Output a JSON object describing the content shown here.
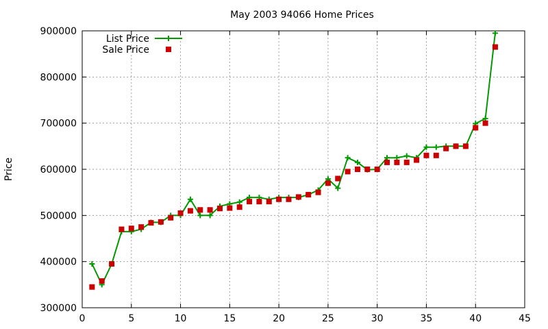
{
  "chart_data": {
    "type": "line",
    "title": "May 2003 94066 Home Prices",
    "xlabel": "",
    "ylabel": "Price",
    "xlim": [
      0,
      45
    ],
    "ylim": [
      300000,
      900000
    ],
    "xticks": [
      0,
      5,
      10,
      15,
      20,
      25,
      30,
      35,
      40,
      45
    ],
    "yticks": [
      300000,
      400000,
      500000,
      600000,
      700000,
      800000,
      900000
    ],
    "grid": true,
    "legend_position": "top-left",
    "series": [
      {
        "name": "List Price",
        "style": "line-with-plus-markers",
        "color": "#009900",
        "points": [
          [
            1,
            395000
          ],
          [
            2,
            350000
          ],
          [
            3,
            395000
          ],
          [
            4,
            465000
          ],
          [
            5,
            465000
          ],
          [
            6,
            470000
          ],
          [
            7,
            485000
          ],
          [
            8,
            485000
          ],
          [
            9,
            500000
          ],
          [
            10,
            500000
          ],
          [
            11,
            535000
          ],
          [
            12,
            500000
          ],
          [
            13,
            500000
          ],
          [
            14,
            520000
          ],
          [
            15,
            525000
          ],
          [
            16,
            529000
          ],
          [
            17,
            539000
          ],
          [
            18,
            539000
          ],
          [
            19,
            535000
          ],
          [
            20,
            539000
          ],
          [
            21,
            539000
          ],
          [
            22,
            539000
          ],
          [
            23,
            545000
          ],
          [
            24,
            555000
          ],
          [
            25,
            579000
          ],
          [
            26,
            559000
          ],
          [
            27,
            625000
          ],
          [
            28,
            615000
          ],
          [
            29,
            599000
          ],
          [
            30,
            600000
          ],
          [
            31,
            625000
          ],
          [
            32,
            625000
          ],
          [
            33,
            629000
          ],
          [
            34,
            625000
          ],
          [
            35,
            648000
          ],
          [
            36,
            648000
          ],
          [
            37,
            650000
          ],
          [
            38,
            650000
          ],
          [
            39,
            650000
          ],
          [
            40,
            699000
          ],
          [
            41,
            710000
          ],
          [
            42,
            895000
          ]
        ]
      },
      {
        "name": "Sale Price",
        "style": "square-markers",
        "color": "#cc0000",
        "points": [
          [
            1,
            345000
          ],
          [
            2,
            358000
          ],
          [
            3,
            395000
          ],
          [
            4,
            470000
          ],
          [
            5,
            472000
          ],
          [
            6,
            475000
          ],
          [
            7,
            484000
          ],
          [
            8,
            486000
          ],
          [
            9,
            495000
          ],
          [
            10,
            505000
          ],
          [
            11,
            510000
          ],
          [
            12,
            512000
          ],
          [
            13,
            512000
          ],
          [
            14,
            515000
          ],
          [
            15,
            516000
          ],
          [
            16,
            518000
          ],
          [
            17,
            530000
          ],
          [
            18,
            530000
          ],
          [
            19,
            530000
          ],
          [
            20,
            535000
          ],
          [
            21,
            535000
          ],
          [
            22,
            540000
          ],
          [
            23,
            545000
          ],
          [
            24,
            550000
          ],
          [
            25,
            570000
          ],
          [
            26,
            580000
          ],
          [
            27,
            595000
          ],
          [
            28,
            600000
          ],
          [
            29,
            600000
          ],
          [
            30,
            600000
          ],
          [
            31,
            615000
          ],
          [
            32,
            615000
          ],
          [
            33,
            615000
          ],
          [
            34,
            620000
          ],
          [
            35,
            630000
          ],
          [
            36,
            630000
          ],
          [
            37,
            645000
          ],
          [
            38,
            650000
          ],
          [
            39,
            650000
          ],
          [
            40,
            690000
          ],
          [
            41,
            700000
          ],
          [
            42,
            865000
          ]
        ]
      }
    ]
  }
}
